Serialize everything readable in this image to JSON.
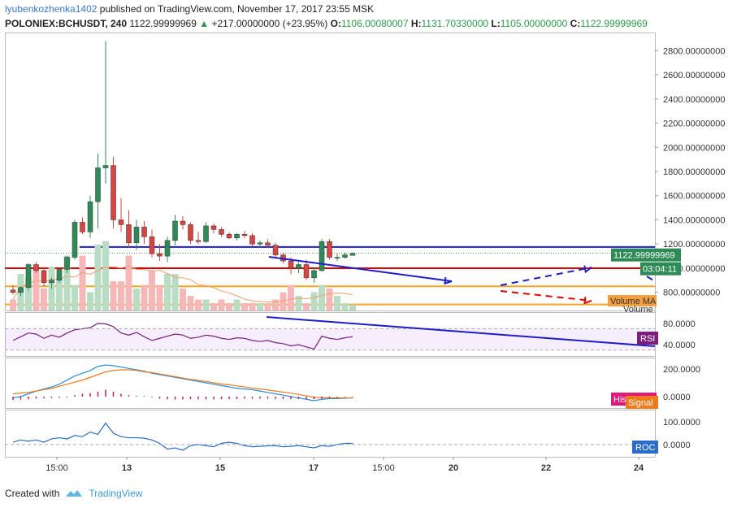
{
  "header": {
    "author": "lyubenkozhenka1402",
    "published_text": "published on TradingView.com, November 17, 2017 23:55 MSK",
    "symbol": "POLONIEX:BCHUSDT, 240",
    "last_price": "1122.99999969",
    "change_arrow": "▲",
    "change": "+217.00000000 (+23.95%)",
    "o_label": "O:",
    "o_value": "1106.00080007",
    "h_label": "H:",
    "h_value": "1131.70330000",
    "l_label": "L:",
    "l_value": "1105.00000000",
    "c_label": "C:",
    "c_value": "1122.99999969"
  },
  "price_axis": {
    "ticks": [
      "2800.00000000",
      "2600.00000000",
      "2400.00000000",
      "2200.00000000",
      "2000.00000000",
      "1800.00000000",
      "1600.00000000",
      "1400.00000000",
      "1200.00000000",
      "1000.00000000",
      "800.00000000"
    ],
    "last_price_label": "1122.99999969",
    "countdown_label": "03:04:11",
    "volume_ma_label": "Volume MA",
    "volume_label": "Volume"
  },
  "rsi_axis": {
    "ticks": [
      "80.0000",
      "40.0000"
    ],
    "label": "RSI"
  },
  "macd_axis": {
    "ticks": [
      "200.0000",
      "0.0000"
    ],
    "histogram_label": "Histogram",
    "signal_label": "Signal"
  },
  "roc_axis": {
    "ticks": [
      "100.0000",
      "0.0000"
    ],
    "label": "ROC"
  },
  "time_axis": {
    "ticks": [
      "15:00",
      "13",
      "15",
      "17",
      "15:00",
      "20",
      "22",
      "24"
    ]
  },
  "footer": {
    "created_with": "Created with",
    "brand": "TradingView"
  },
  "colors": {
    "up": "#2e8b57",
    "down": "#d64541",
    "support_red": "#e00000",
    "resistance_blue": "#1e1ec8",
    "orange": "#f5a623",
    "rsi": "#7b1f7b",
    "macd": "#2b8cd8",
    "signal": "#f07a1a",
    "hist": "#c2185b"
  },
  "chart_data": {
    "type": "candlestick",
    "candles": [
      {
        "o": 820,
        "h": 860,
        "l": 780,
        "c": 800
      },
      {
        "o": 800,
        "h": 850,
        "l": 770,
        "c": 840
      },
      {
        "o": 840,
        "h": 1040,
        "l": 820,
        "c": 1030
      },
      {
        "o": 1030,
        "h": 1050,
        "l": 960,
        "c": 980
      },
      {
        "o": 980,
        "h": 1010,
        "l": 850,
        "c": 880
      },
      {
        "o": 880,
        "h": 920,
        "l": 830,
        "c": 900
      },
      {
        "o": 900,
        "h": 1000,
        "l": 880,
        "c": 990
      },
      {
        "o": 990,
        "h": 1100,
        "l": 960,
        "c": 1090
      },
      {
        "o": 1090,
        "h": 1400,
        "l": 1070,
        "c": 1380
      },
      {
        "o": 1380,
        "h": 1420,
        "l": 1280,
        "c": 1300
      },
      {
        "o": 1300,
        "h": 1600,
        "l": 1250,
        "c": 1550
      },
      {
        "o": 1550,
        "h": 1950,
        "l": 1330,
        "c": 1830
      },
      {
        "o": 1830,
        "h": 2880,
        "l": 1700,
        "c": 1850
      },
      {
        "o": 1850,
        "h": 1920,
        "l": 1330,
        "c": 1400
      },
      {
        "o": 1400,
        "h": 1580,
        "l": 1300,
        "c": 1360
      },
      {
        "o": 1360,
        "h": 1480,
        "l": 1170,
        "c": 1210
      },
      {
        "o": 1210,
        "h": 1400,
        "l": 1150,
        "c": 1340
      },
      {
        "o": 1340,
        "h": 1390,
        "l": 1200,
        "c": 1260
      },
      {
        "o": 1260,
        "h": 1320,
        "l": 1090,
        "c": 1120
      },
      {
        "o": 1120,
        "h": 1200,
        "l": 1060,
        "c": 1100
      },
      {
        "o": 1100,
        "h": 1260,
        "l": 1050,
        "c": 1230
      },
      {
        "o": 1230,
        "h": 1440,
        "l": 1190,
        "c": 1390
      },
      {
        "o": 1390,
        "h": 1430,
        "l": 1320,
        "c": 1360
      },
      {
        "o": 1360,
        "h": 1380,
        "l": 1200,
        "c": 1230
      },
      {
        "o": 1230,
        "h": 1300,
        "l": 1200,
        "c": 1220
      },
      {
        "o": 1220,
        "h": 1380,
        "l": 1210,
        "c": 1350
      },
      {
        "o": 1350,
        "h": 1370,
        "l": 1290,
        "c": 1320
      },
      {
        "o": 1320,
        "h": 1340,
        "l": 1260,
        "c": 1280
      },
      {
        "o": 1280,
        "h": 1300,
        "l": 1240,
        "c": 1250
      },
      {
        "o": 1250,
        "h": 1290,
        "l": 1230,
        "c": 1280
      },
      {
        "o": 1280,
        "h": 1310,
        "l": 1250,
        "c": 1270
      },
      {
        "o": 1270,
        "h": 1290,
        "l": 1180,
        "c": 1200
      },
      {
        "o": 1200,
        "h": 1230,
        "l": 1170,
        "c": 1210
      },
      {
        "o": 1210,
        "h": 1240,
        "l": 1170,
        "c": 1190
      },
      {
        "o": 1190,
        "h": 1210,
        "l": 1090,
        "c": 1110
      },
      {
        "o": 1110,
        "h": 1130,
        "l": 1040,
        "c": 1060
      },
      {
        "o": 1060,
        "h": 1090,
        "l": 950,
        "c": 1000
      },
      {
        "o": 1000,
        "h": 1050,
        "l": 960,
        "c": 1030
      },
      {
        "o": 1030,
        "h": 1070,
        "l": 900,
        "c": 920
      },
      {
        "o": 920,
        "h": 1010,
        "l": 880,
        "c": 980
      },
      {
        "o": 980,
        "h": 1240,
        "l": 970,
        "c": 1220
      },
      {
        "o": 1220,
        "h": 1240,
        "l": 1070,
        "c": 1090
      },
      {
        "o": 1090,
        "h": 1120,
        "l": 1060,
        "c": 1090
      },
      {
        "o": 1090,
        "h": 1130,
        "l": 1080,
        "c": 1110
      },
      {
        "o": 1106,
        "h": 1131.7,
        "l": 1105,
        "c": 1123
      }
    ],
    "volumes": [
      0.15,
      0.5,
      0.45,
      0.55,
      0.3,
      0.6,
      0.45,
      0.75,
      0.35,
      0.75,
      0.25,
      0.9,
      0.95,
      0.4,
      0.4,
      0.75,
      0.3,
      0.35,
      0.55,
      0.35,
      0.5,
      0.5,
      0.3,
      0.2,
      0.15,
      0.15,
      0.1,
      0.15,
      0.1,
      0.15,
      0.1,
      0.1,
      0.1,
      0.1,
      0.15,
      0.25,
      0.35,
      0.2,
      0.1,
      0.25,
      0.35,
      0.3,
      0.2,
      0.1,
      0.08
    ],
    "horizontal_levels": [
      {
        "name": "resistance",
        "value": 1175,
        "color": "blue"
      },
      {
        "name": "support",
        "value": 1000,
        "color": "red"
      },
      {
        "name": "support-low",
        "value": 850,
        "color": "orange"
      },
      {
        "name": "support-floor",
        "value": 700,
        "color": "orange"
      }
    ],
    "ylim": [
      650,
      2950
    ],
    "rsi": [
      48,
      55,
      62,
      60,
      52,
      58,
      54,
      62,
      68,
      70,
      72,
      80,
      79,
      74,
      62,
      58,
      63,
      55,
      48,
      52,
      56,
      60,
      58,
      52,
      54,
      58,
      56,
      52,
      50,
      53,
      52,
      48,
      46,
      48,
      44,
      42,
      38,
      40,
      36,
      32,
      56,
      52,
      50,
      53,
      55
    ],
    "rsi_ylim": [
      25,
      95
    ],
    "macd": [
      -10,
      0,
      20,
      40,
      55,
      70,
      90,
      120,
      150,
      170,
      190,
      220,
      230,
      225,
      215,
      205,
      195,
      185,
      170,
      160,
      150,
      140,
      130,
      120,
      110,
      100,
      90,
      80,
      70,
      60,
      55,
      50,
      40,
      30,
      20,
      10,
      0,
      -10,
      -20,
      -30,
      -20,
      -15,
      -15,
      -12,
      -10
    ],
    "signal": [
      20,
      25,
      30,
      40,
      50,
      60,
      75,
      90,
      105,
      120,
      140,
      160,
      180,
      190,
      195,
      195,
      190,
      180,
      175,
      165,
      155,
      145,
      135,
      125,
      118,
      110,
      100,
      92,
      85,
      78,
      70,
      62,
      55,
      48,
      40,
      32,
      25,
      15,
      5,
      -5,
      -8,
      -10,
      -10,
      -10,
      -10
    ],
    "histogram": [
      -25,
      -22,
      -20,
      -15,
      -12,
      -10,
      -8,
      -5,
      10,
      20,
      25,
      35,
      50,
      35,
      20,
      10,
      5,
      5,
      -5,
      -15,
      -20,
      -22,
      -20,
      -18,
      -20,
      -20,
      -20,
      -18,
      -18,
      -18,
      -15,
      -15,
      -15,
      -15,
      -18,
      -18,
      -18,
      -18,
      -20,
      -20,
      -15,
      -10,
      -8,
      -5,
      -5
    ],
    "macd_ylim": [
      -60,
      260
    ],
    "roc": [
      10,
      20,
      15,
      20,
      10,
      25,
      30,
      25,
      40,
      35,
      55,
      45,
      95,
      50,
      35,
      30,
      30,
      28,
      20,
      5,
      -20,
      -15,
      -25,
      -5,
      0,
      -5,
      -10,
      5,
      10,
      5,
      -5,
      -10,
      -8,
      -6,
      -5,
      -10,
      -8,
      -5,
      -10,
      -15,
      -5,
      -8,
      0,
      5,
      5
    ],
    "roc_ylim": [
      -40,
      140
    ]
  }
}
